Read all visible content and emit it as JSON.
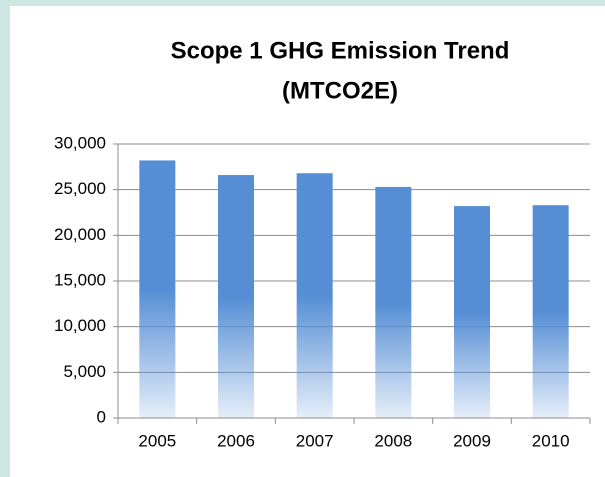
{
  "chart_data": {
    "type": "bar",
    "title": "Scope 1 GHG Emission Trend",
    "subtitle": "(MTCO2E)",
    "categories": [
      "2005",
      "2006",
      "2007",
      "2008",
      "2009",
      "2010"
    ],
    "values": [
      28200,
      26600,
      26800,
      25300,
      23200,
      23300
    ],
    "color": "#558ed5",
    "ylim": [
      0,
      30000
    ],
    "yticks": [
      0,
      {
        "value": 5000,
        "label": "5,000"
      },
      {
        "value": 10000,
        "label": "10,000"
      },
      {
        "value": 15000,
        "label": "15,000"
      },
      {
        "value": 20000,
        "label": "20,000"
      },
      {
        "value": 25000,
        "label": "25,000"
      },
      {
        "value": 30000,
        "label": "30,000"
      }
    ],
    "grid": true
  }
}
